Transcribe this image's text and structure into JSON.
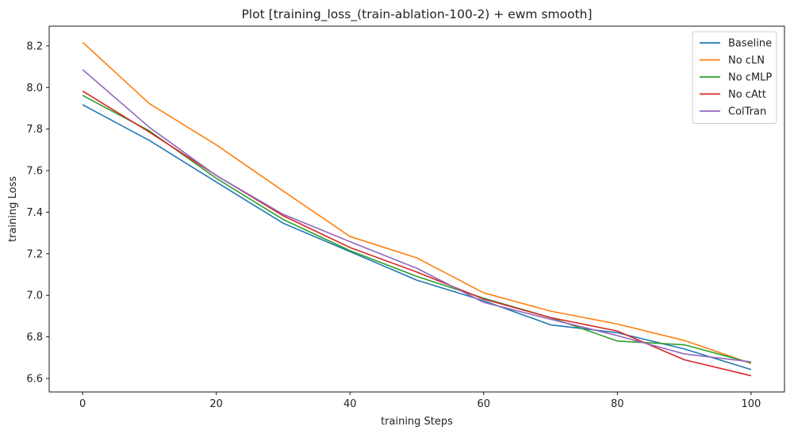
{
  "chart_data": {
    "type": "line",
    "title": "Plot [training_loss_(train-ablation-100-2) + ewm smooth]",
    "xlabel": "training Steps",
    "ylabel": "training Loss",
    "xlim": [
      -5,
      105
    ],
    "ylim": [
      6.535,
      8.295
    ],
    "xticks": [
      0,
      20,
      40,
      60,
      80,
      100
    ],
    "yticks": [
      6.6,
      6.8,
      7.0,
      7.2,
      7.4,
      7.6,
      7.8,
      8.0,
      8.2
    ],
    "grid": false,
    "legend_position": "top-right",
    "x": [
      0,
      10,
      20,
      30,
      40,
      50,
      60,
      70,
      80,
      90,
      100
    ],
    "series": [
      {
        "name": "Baseline",
        "color": "#1f77b4",
        "values": [
          7.917,
          7.745,
          7.545,
          7.347,
          7.21,
          7.073,
          6.974,
          6.858,
          6.82,
          6.742,
          6.643
        ]
      },
      {
        "name": "No cLN",
        "color": "#ff7f0e",
        "values": [
          8.218,
          7.922,
          7.724,
          7.502,
          7.283,
          7.18,
          7.012,
          6.924,
          6.862,
          6.783,
          6.672
        ]
      },
      {
        "name": "No cMLP",
        "color": "#2ca02c",
        "values": [
          7.962,
          7.791,
          7.563,
          7.365,
          7.215,
          7.091,
          6.986,
          6.893,
          6.78,
          6.762,
          6.675
        ]
      },
      {
        "name": "No cAtt",
        "color": "#d62728",
        "values": [
          7.983,
          7.785,
          7.577,
          7.383,
          7.23,
          7.112,
          6.982,
          6.893,
          6.828,
          6.69,
          6.613
        ]
      },
      {
        "name": "ColTran",
        "color": "#9467bd",
        "values": [
          8.086,
          7.808,
          7.576,
          7.39,
          7.258,
          7.13,
          6.966,
          6.885,
          6.806,
          6.718,
          6.68
        ]
      }
    ]
  }
}
